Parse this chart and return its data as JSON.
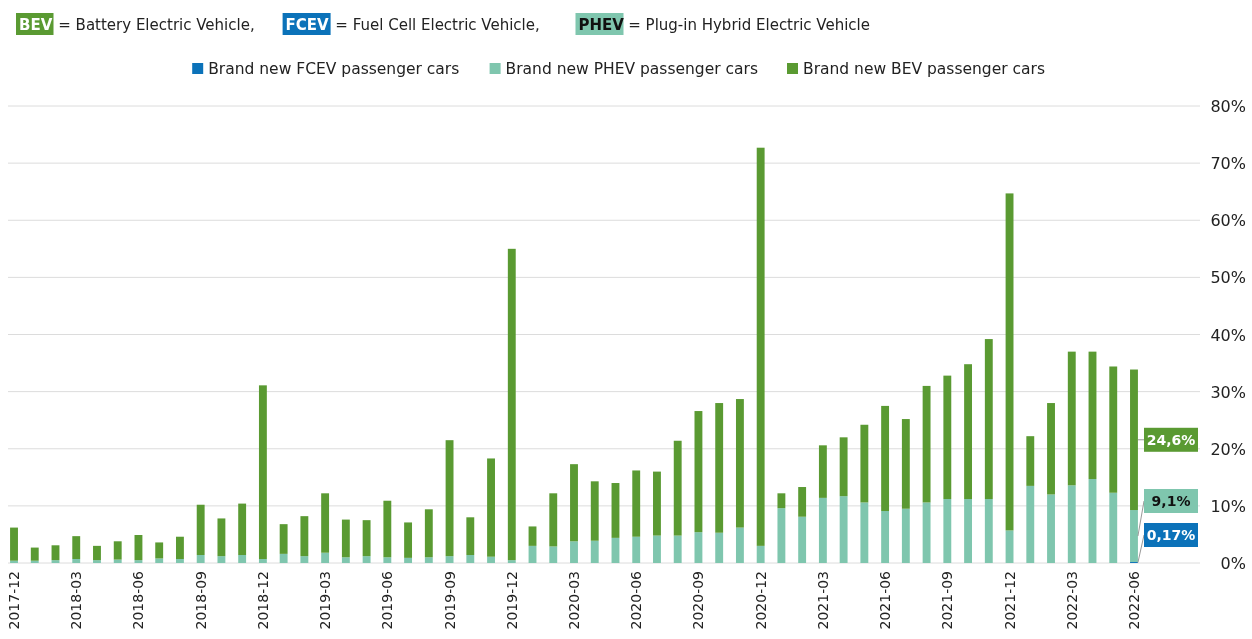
{
  "chart_data": {
    "type": "bar",
    "stacked": true,
    "subtitle": "BEV = Battery Electric Vehicle, FCEV = Fuel Cell Electric Vehicle, PHEV = Plug-in Hybrid Electric Vehicle",
    "categories": [
      "2017-12",
      null,
      null,
      "2018-03",
      null,
      null,
      "2018-06",
      null,
      null,
      "2018-09",
      null,
      null,
      "2018-12",
      null,
      null,
      "2019-03",
      null,
      null,
      "2019-06",
      null,
      null,
      "2019-09",
      null,
      null,
      "2019-12",
      null,
      null,
      "2020-03",
      null,
      null,
      "2020-06",
      null,
      null,
      "2020-09",
      null,
      null,
      "2020-12",
      null,
      null,
      "2021-03",
      null,
      null,
      "2021-06",
      null,
      null,
      "2021-09",
      null,
      null,
      "2021-12",
      null,
      null,
      "2022-03",
      null,
      null,
      "2022-06"
    ],
    "series": [
      {
        "name": "Brand new FCEV passenger cars",
        "color": "#0b72b9",
        "values": [
          null,
          null,
          null,
          null,
          null,
          null,
          null,
          null,
          null,
          null,
          null,
          null,
          null,
          null,
          null,
          null,
          null,
          null,
          null,
          null,
          null,
          null,
          null,
          null,
          null,
          null,
          null,
          null,
          null,
          null,
          null,
          null,
          null,
          null,
          null,
          null,
          null,
          null,
          null,
          null,
          null,
          null,
          null,
          null,
          null,
          null,
          null,
          null,
          null,
          null,
          null,
          null,
          null,
          null,
          0.17
        ],
        "value_labels": [
          null,
          null,
          null,
          null,
          null,
          null,
          null,
          null,
          null,
          null,
          null,
          null,
          null,
          null,
          null,
          null,
          null,
          null,
          null,
          null,
          null,
          null,
          null,
          null,
          null,
          null,
          null,
          null,
          null,
          null,
          null,
          null,
          null,
          null,
          null,
          null,
          null,
          null,
          null,
          null,
          null,
          null,
          null,
          null,
          null,
          null,
          null,
          null,
          null,
          null,
          null,
          null,
          null,
          null,
          "0,17%"
        ]
      },
      {
        "name": "Brand new PHEV passenger cars",
        "color": "#7fc6ae",
        "values": [
          0.4,
          0.4,
          0.5,
          0.7,
          0.5,
          0.6,
          0.5,
          0.8,
          0.7,
          1.4,
          1.2,
          1.4,
          0.7,
          1.6,
          1.2,
          1.8,
          1.0,
          1.2,
          1.0,
          0.9,
          1.0,
          1.2,
          1.4,
          1.1,
          0.5,
          3.0,
          2.9,
          3.8,
          3.9,
          4.4,
          4.6,
          4.8,
          4.8,
          5.4,
          5.3,
          6.2,
          3.0,
          9.6,
          8.1,
          11.4,
          11.7,
          10.6,
          9.1,
          9.5,
          10.6,
          11.2,
          11.2,
          11.2,
          5.7,
          13.5,
          12.0,
          13.6,
          14.7,
          12.3,
          9.1
        ],
        "value_labels": [
          null,
          null,
          null,
          null,
          null,
          null,
          null,
          null,
          null,
          null,
          null,
          null,
          null,
          null,
          null,
          null,
          null,
          null,
          null,
          null,
          null,
          null,
          null,
          null,
          null,
          null,
          null,
          null,
          null,
          null,
          null,
          null,
          null,
          null,
          null,
          null,
          null,
          null,
          null,
          null,
          null,
          null,
          null,
          null,
          null,
          null,
          null,
          null,
          null,
          null,
          null,
          null,
          null,
          null,
          "9,1%"
        ]
      },
      {
        "name": "Brand new BEV passenger cars",
        "color": "#5a9a32",
        "values": [
          5.8,
          2.3,
          2.6,
          4.0,
          2.5,
          3.2,
          4.4,
          2.8,
          3.9,
          8.8,
          6.6,
          9.0,
          30.4,
          5.2,
          7.0,
          10.4,
          6.6,
          6.3,
          9.9,
          6.2,
          8.4,
          20.3,
          6.6,
          17.2,
          54.5,
          3.4,
          9.3,
          13.5,
          10.4,
          9.6,
          11.6,
          11.2,
          16.6,
          21.2,
          22.7,
          22.5,
          69.7,
          2.6,
          5.2,
          9.2,
          10.3,
          13.6,
          18.4,
          15.7,
          20.4,
          21.6,
          23.6,
          28.0,
          59.0,
          8.7,
          16.0,
          23.4,
          22.3,
          22.1,
          24.6
        ],
        "value_labels": [
          null,
          null,
          null,
          null,
          null,
          null,
          null,
          null,
          null,
          null,
          null,
          null,
          null,
          null,
          null,
          null,
          null,
          null,
          null,
          null,
          null,
          null,
          null,
          null,
          null,
          null,
          null,
          null,
          null,
          null,
          null,
          null,
          null,
          null,
          null,
          null,
          null,
          null,
          null,
          null,
          null,
          null,
          null,
          null,
          null,
          null,
          null,
          null,
          null,
          null,
          null,
          null,
          null,
          null,
          "24,6%"
        ]
      }
    ],
    "ylim": [
      0,
      80
    ],
    "yticks": [
      {
        "value": 0,
        "label": "0%"
      },
      {
        "value": 10,
        "label": "10%"
      },
      {
        "value": 20,
        "label": "20%"
      },
      {
        "value": 30,
        "label": "30%"
      },
      {
        "value": 40,
        "label": "40%"
      },
      {
        "value": 50,
        "label": "50%"
      },
      {
        "value": 60,
        "label": "60%"
      },
      {
        "value": 70,
        "label": "70%"
      },
      {
        "value": 80,
        "label": "80%"
      }
    ],
    "grid": "y",
    "legend": "top"
  }
}
